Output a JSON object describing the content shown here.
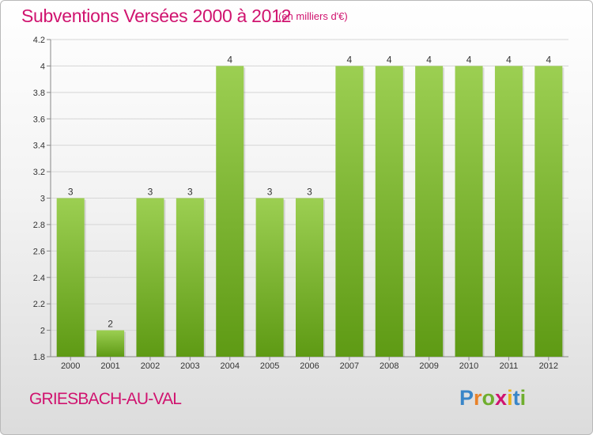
{
  "header": {
    "title": "Subventions Versées 2000 à 2012",
    "unit": "(en milliers d'€)"
  },
  "footer": {
    "place": "GRIESBACH-AU-VAL",
    "logo": {
      "letters": [
        "P",
        "r",
        "o",
        "x",
        "i",
        "t",
        "i"
      ],
      "colors": [
        "#3a86c8",
        "#e8822a",
        "#6fae2e",
        "#d0136f",
        "#e8b21a",
        "#3a86c8",
        "#6fae2e"
      ]
    }
  },
  "colors": {
    "title": "#d0136f",
    "bar_light": "#9ccf52",
    "bar_dark": "#5e9a14"
  },
  "chart_data": {
    "type": "bar",
    "title": "Subventions Versées 2000 à 2012",
    "categories": [
      "2000",
      "2001",
      "2002",
      "2003",
      "2004",
      "2005",
      "2006",
      "2007",
      "2008",
      "2009",
      "2010",
      "2011",
      "2012"
    ],
    "values": [
      3,
      2,
      3,
      3,
      4,
      3,
      3,
      4,
      4,
      4,
      4,
      4,
      4
    ],
    "ylim": [
      1.8,
      4.2
    ],
    "yticks": [
      "1.8",
      "2",
      "2.2",
      "2.4",
      "2.6",
      "2.8",
      "3",
      "3.2",
      "3.4",
      "3.6",
      "3.8",
      "4",
      "4.2"
    ],
    "grid": true,
    "xlabel": "",
    "ylabel": ""
  }
}
